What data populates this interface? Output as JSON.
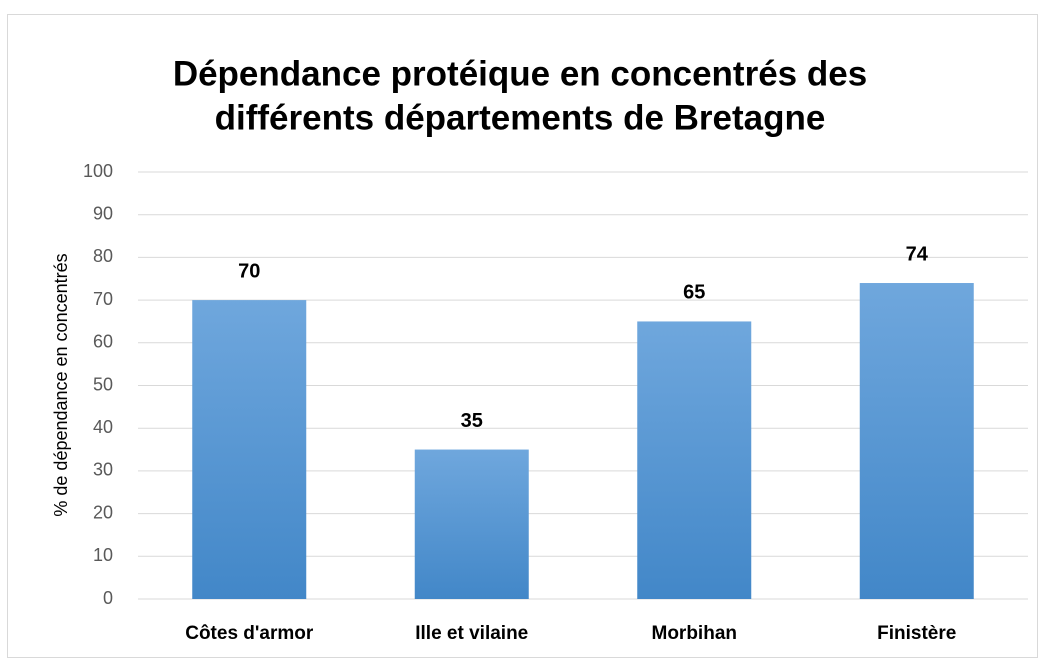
{
  "chart_data": {
    "type": "bar",
    "title": [
      "Dépendance protéique en concentrés des",
      "différents départements de Bretagne"
    ],
    "y_label": "% de dépendance en concentrés",
    "categories": [
      "Côtes d'armor",
      "Ille et vilaine",
      "Morbihan",
      "Finistère"
    ],
    "values": [
      70,
      35,
      65,
      74
    ],
    "color": "#5b9bd5",
    "ylim": [
      0,
      100
    ],
    "yticks": [
      0,
      10,
      20,
      30,
      40,
      50,
      60,
      70,
      80,
      90,
      100
    ],
    "grid": true
  }
}
